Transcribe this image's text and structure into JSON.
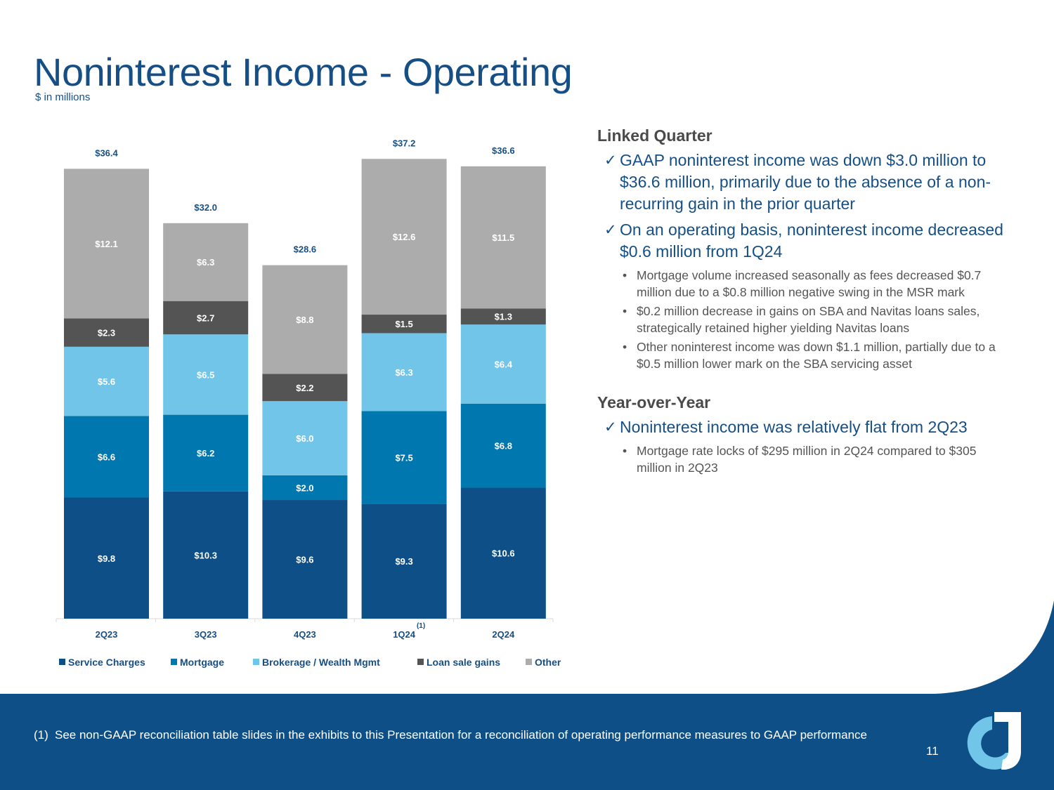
{
  "title": "Noninterest Income - Operating",
  "subtitle": "$ in millions",
  "colors": {
    "service_charges": "#0d4f86",
    "mortgage": "#0077ae",
    "brokerage": "#71c5e8",
    "loan_sale_gains": "#545454",
    "other": "#acacac",
    "title_blue": "#164f85"
  },
  "chart_data": {
    "type": "bar",
    "stacked": true,
    "title": "",
    "xlabel": "",
    "ylabel": "",
    "categories": [
      "2Q23",
      "3Q23",
      "4Q23",
      "1Q24",
      "2Q24"
    ],
    "category_footnotes": [
      "",
      "",
      "",
      "(1)",
      ""
    ],
    "series": [
      {
        "name": "Service Charges",
        "values": [
          9.8,
          10.3,
          9.6,
          9.3,
          10.6
        ],
        "labels": [
          "$9.8",
          "$10.3",
          "$9.6",
          "$9.3",
          "$10.6"
        ]
      },
      {
        "name": "Mortgage",
        "values": [
          6.6,
          6.2,
          2.0,
          7.5,
          6.8
        ],
        "labels": [
          "$6.6",
          "$6.2",
          "$2.0",
          "$7.5",
          "$6.8"
        ]
      },
      {
        "name": "Brokerage / Wealth Mgmt",
        "values": [
          5.6,
          6.5,
          6.0,
          6.3,
          6.4
        ],
        "labels": [
          "$5.6",
          "$6.5",
          "$6.0",
          "$6.3",
          "$6.4"
        ]
      },
      {
        "name": "Loan sale gains",
        "values": [
          2.3,
          2.7,
          2.2,
          1.5,
          1.3
        ],
        "labels": [
          "$2.3",
          "$2.7",
          "$2.2",
          "$1.5",
          "$1.3"
        ]
      },
      {
        "name": "Other",
        "values": [
          12.1,
          6.3,
          8.8,
          12.6,
          11.5
        ],
        "labels": [
          "$12.1",
          "$6.3",
          "$8.8",
          "$12.6",
          "$11.5"
        ]
      }
    ],
    "totals": [
      36.4,
      32.0,
      28.6,
      37.2,
      36.6
    ],
    "total_labels": [
      "$36.4",
      "$32.0",
      "$28.6",
      "$37.2",
      "$36.6"
    ],
    "ylim": [
      0,
      40
    ],
    "legend_position": "bottom"
  },
  "commentary": {
    "linked_quarter": {
      "heading": "Linked Quarter",
      "check_glyph": "✓",
      "points": [
        {
          "text": "GAAP noninterest income was down $3.0 million to $36.6 million, primarily due to the absence of a non-recurring gain in the prior quarter",
          "bullets": []
        },
        {
          "text": "On an operating basis, noninterest income decreased $0.6 million from 1Q24",
          "bullets": [
            "Mortgage volume increased seasonally as fees decreased $0.7 million due to a $0.8 million negative swing in the MSR mark",
            "$0.2 million decrease in gains on SBA and Navitas loans sales, strategically retained higher yielding Navitas loans",
            "Other noninterest income was down $1.1 million, partially due to a $0.5 million lower mark on the SBA servicing asset"
          ]
        }
      ]
    },
    "year_over_year": {
      "heading": "Year-over-Year",
      "check_glyph": "✓",
      "points": [
        {
          "text": "Noninterest income was relatively flat from 2Q23",
          "bullets": [
            "Mortgage rate locks of $295 million in 2Q24 compared to $305 million in 2Q23"
          ]
        }
      ]
    }
  },
  "footer": {
    "footnote_number": "(1)",
    "footnote_text": "See non-GAAP reconciliation table slides in the exhibits to this Presentation for a reconciliation of operating performance measures to GAAP performance",
    "page_number": "11"
  }
}
